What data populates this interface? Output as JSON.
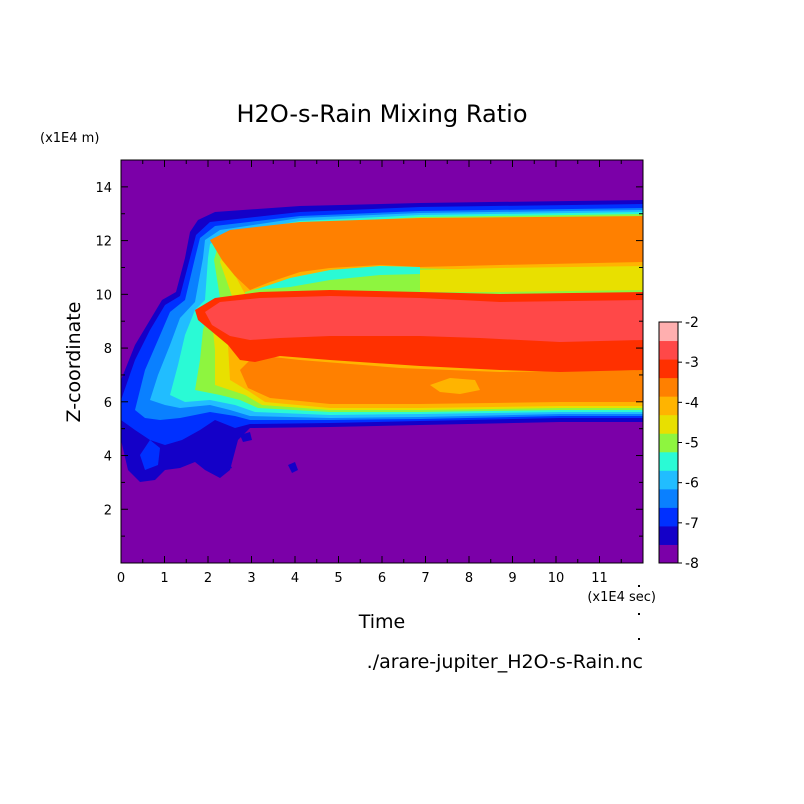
{
  "chart_data": {
    "type": "heatmap",
    "title": "H2O-s-Rain Mixing Ratio",
    "xlabel": "Time",
    "ylabel": "Z-coordinate",
    "x_unit": "(x1E4 sec)",
    "y_unit": "(x1E4 m)",
    "footer": "./arare-jupiter_H2O-s-Rain.nc",
    "xlim": [
      0,
      12
    ],
    "ylim": [
      0,
      15
    ],
    "x_ticks": [
      "0",
      "1",
      "2",
      "3",
      "4",
      "5",
      "6",
      "7",
      "8",
      "9",
      "10",
      "11"
    ],
    "y_ticks": [
      "2",
      "4",
      "6",
      "8",
      "10",
      "12",
      "14"
    ],
    "colorbar": {
      "levels": [
        -8,
        -7.5,
        -7,
        -6.5,
        -6,
        -5.5,
        -5,
        -4.5,
        -4,
        -3.5,
        -3,
        -2.5,
        -2
      ],
      "tick_labels": [
        "-2",
        "-3",
        "-4",
        "-5",
        "-6",
        "-7",
        "-8"
      ],
      "colors": [
        "#7b00a8",
        "#1400c8",
        "#0030ff",
        "#0a80ff",
        "#21bdff",
        "#2afad5",
        "#8ef53f",
        "#e8e000",
        "#ffb400",
        "#ff8000",
        "#ff3000",
        "#ff4848",
        "#ffafaf"
      ]
    },
    "background_level": -8,
    "regions": [
      {
        "level": "< -8",
        "description": "background",
        "color_index": 0
      },
      {
        "level": "-3 to -2.5",
        "x": [
          1.8,
          12
        ],
        "z": [
          8.3,
          9.6
        ]
      },
      {
        "level": "-3.5 to -3",
        "x": [
          2.2,
          12
        ],
        "z": [
          6.8,
          8.3
        ]
      },
      {
        "level": "-4 to -3.5",
        "x": [
          2.5,
          12
        ],
        "z": [
          11.2,
          12.7
        ]
      },
      {
        "level": "-4 to -3.5",
        "x": [
          3,
          12
        ],
        "z": [
          5.8,
          6.8
        ]
      }
    ]
  }
}
